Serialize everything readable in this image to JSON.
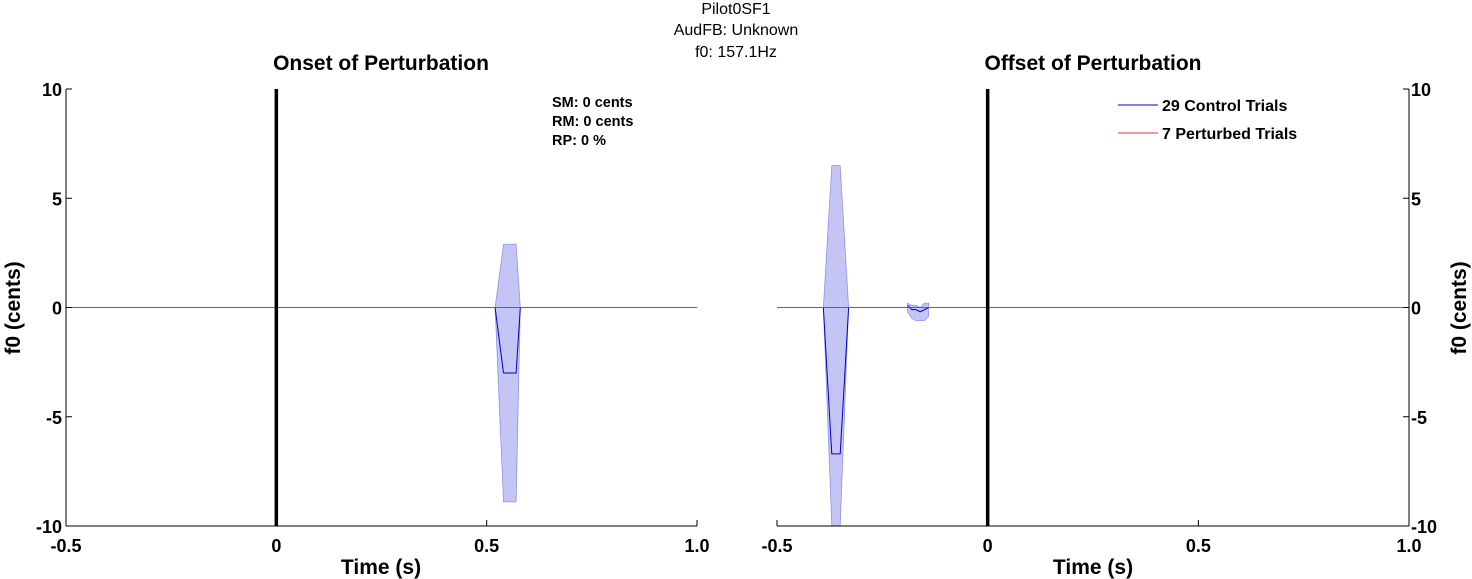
{
  "figure": {
    "suptitle": [
      "Pilot0SF1",
      "AudFB: Unknown",
      "f0: 157.1Hz"
    ]
  },
  "chart_data": [
    {
      "type": "line",
      "title": "Onset of Perturbation",
      "xlabel": "Time (s)",
      "ylabel": "f0 (cents)",
      "xlim": [
        -0.5,
        1.0
      ],
      "ylim": [
        -10,
        10
      ],
      "xticks": [
        "-0.5",
        "0",
        "0.5",
        "1.0"
      ],
      "yticks": [
        "-10",
        "-5",
        "0",
        "5",
        "10"
      ],
      "yaxis_side": "left",
      "event_line_x": 0,
      "annotation": [
        "SM: 0 cents",
        "RM: 0 cents",
        "RP: 0 %"
      ],
      "series": [
        {
          "name": "29 Control Trials",
          "color": "#0000cc",
          "band_color": "#c5c5f5",
          "x": [
            0.52,
            0.54,
            0.57,
            0.58
          ],
          "y": [
            0,
            -3.0,
            -3.0,
            0
          ],
          "band_upper": [
            0,
            2.9,
            2.9,
            0
          ],
          "band_lower": [
            0,
            -8.9,
            -8.9,
            0
          ]
        },
        {
          "name": "7 Perturbed Trials",
          "color": "#e03030",
          "x": [
            -0.5,
            1.0
          ],
          "y": [
            0,
            0
          ]
        }
      ]
    },
    {
      "type": "line",
      "title": "Offset of Perturbation",
      "xlabel": "Time (s)",
      "ylabel": "f0 (cents)",
      "xlim": [
        -0.5,
        1.0
      ],
      "ylim": [
        -10,
        10
      ],
      "xticks": [
        "-0.5",
        "0",
        "0.5",
        "1.0"
      ],
      "yticks": [
        "-10",
        "-5",
        "0",
        "5",
        "10"
      ],
      "yaxis_side": "right",
      "event_line_x": 0,
      "legend": {
        "placement": "top-right",
        "entries": [
          "29 Control Trials",
          "7 Perturbed Trials"
        ]
      },
      "series": [
        {
          "name": "29 Control Trials",
          "color": "#0000cc",
          "band_color": "#c5c5f5",
          "x": [
            -0.39,
            -0.37,
            -0.35,
            -0.33,
            -0.19,
            -0.18,
            -0.17,
            -0.16,
            -0.15,
            -0.14
          ],
          "y": [
            0,
            -6.7,
            -6.7,
            0,
            0.1,
            -0.1,
            -0.1,
            -0.2,
            -0.1,
            0
          ],
          "band_upper": [
            0,
            6.5,
            6.5,
            0,
            0.2,
            0.1,
            0.1,
            0.0,
            0.2,
            0.2
          ],
          "band_lower": [
            0,
            -10,
            -10,
            0,
            -0.2,
            -0.5,
            -0.6,
            -0.6,
            -0.6,
            -0.4
          ],
          "segments": [
            [
              0,
              4
            ],
            [
              4,
              10
            ]
          ]
        },
        {
          "name": "7 Perturbed Trials",
          "color": "#e03030",
          "x": [
            -0.5,
            1.0
          ],
          "y": [
            0,
            0
          ]
        }
      ]
    }
  ]
}
